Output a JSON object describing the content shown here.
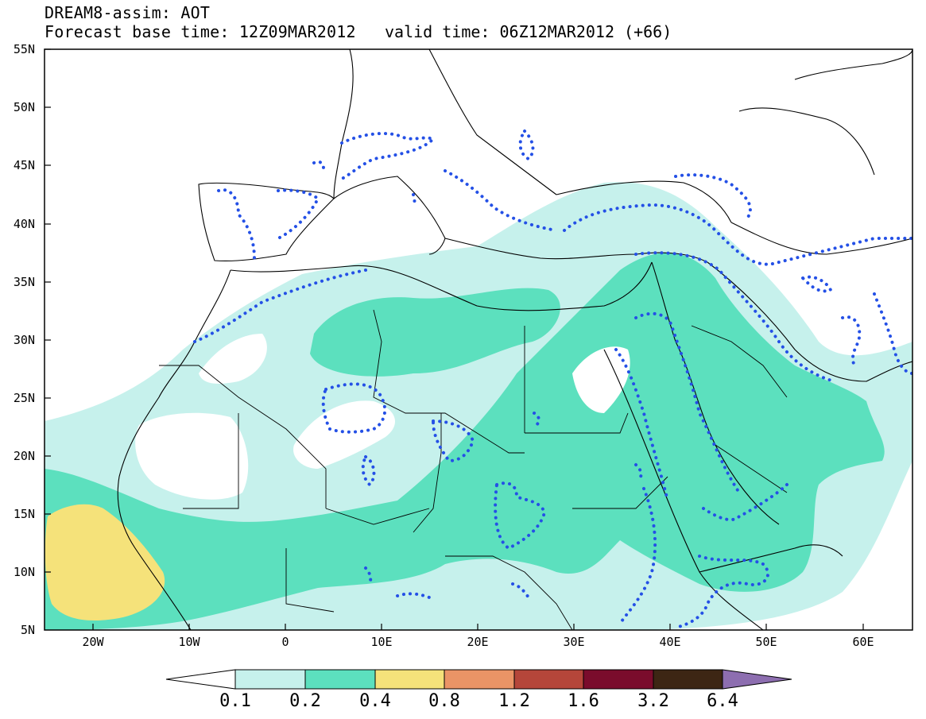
{
  "header": {
    "line1": "DREAM8-assim: AOT",
    "base_time": "Forecast base time: 12Z09MAR2012",
    "valid_time": "valid time: 06Z12MAR2012 (+66)"
  },
  "map": {
    "variable": "AOT",
    "lat_labels": [
      "55N",
      "50N",
      "45N",
      "40N",
      "35N",
      "30N",
      "25N",
      "20N",
      "15N",
      "10N",
      "5N"
    ],
    "lon_labels": [
      "20W",
      "10W",
      "0",
      "10E",
      "20E",
      "30E",
      "40E",
      "50E",
      "60E"
    ],
    "lon_range": [
      -25,
      65
    ],
    "lat_range": [
      5,
      55
    ]
  },
  "legend": {
    "thresholds": [
      "0.1",
      "0.2",
      "0.4",
      "0.8",
      "1.2",
      "1.6",
      "3.2",
      "6.4"
    ],
    "colors": [
      "#ffffff",
      "#c6f1ec",
      "#5ce0be",
      "#f5e27a",
      "#ea9466",
      "#b5463a",
      "#7a0c2c",
      "#3d2614",
      "#8d6eb0"
    ]
  },
  "colors": {
    "aot_0_1": "#c6f1ec",
    "aot_0_2": "#5ce0be",
    "aot_0_4": "#f5e27a",
    "contour": "#2450e6",
    "coast": "#000000"
  }
}
